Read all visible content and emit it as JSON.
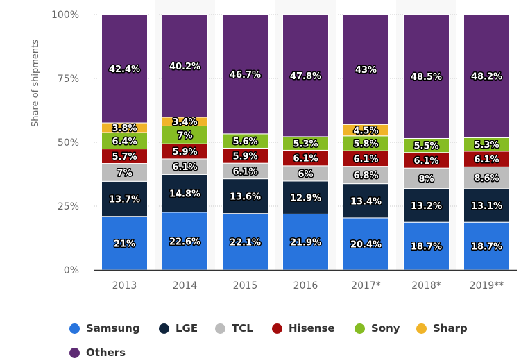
{
  "chart_data": {
    "type": "bar",
    "stacked": true,
    "title": "",
    "xlabel": "",
    "ylabel": "Share of shipments",
    "ylim": [
      0,
      100
    ],
    "yticks": [
      "0%",
      "25%",
      "50%",
      "75%",
      "100%"
    ],
    "ytick_values": [
      0,
      25,
      50,
      75,
      100
    ],
    "grid": true,
    "legend_position": "bottom",
    "categories": [
      "2013",
      "2014",
      "2015",
      "2016",
      "2017*",
      "2018*",
      "2019**"
    ],
    "series": [
      {
        "name": "Samsung",
        "color": "#2874dd",
        "values": [
          21,
          22.6,
          22.1,
          21.9,
          20.4,
          18.7,
          18.7
        ],
        "labels": [
          "21%",
          "22.6%",
          "22.1%",
          "21.9%",
          "20.4%",
          "18.7%",
          "18.7%"
        ]
      },
      {
        "name": "LGE",
        "color": "#10253d",
        "values": [
          13.7,
          14.8,
          13.6,
          12.9,
          13.4,
          13.2,
          13.1
        ],
        "labels": [
          "13.7%",
          "14.8%",
          "13.6%",
          "12.9%",
          "13.4%",
          "13.2%",
          "13.1%"
        ]
      },
      {
        "name": "TCL",
        "color": "#bcbcbc",
        "values": [
          7,
          6.1,
          6.1,
          6,
          6.8,
          8,
          8.6
        ],
        "labels": [
          "7%",
          "6.1%",
          "6.1%",
          "6%",
          "6.8%",
          "8%",
          "8.6%"
        ]
      },
      {
        "name": "Hisense",
        "color": "#a30b0b",
        "values": [
          5.7,
          5.9,
          5.9,
          6.1,
          6.1,
          6.1,
          6.1
        ],
        "labels": [
          "5.7%",
          "5.9%",
          "5.9%",
          "6.1%",
          "6.1%",
          "6.1%",
          "6.1%"
        ]
      },
      {
        "name": "Sony",
        "color": "#86bc23",
        "values": [
          6.4,
          7,
          5.6,
          5.3,
          5.8,
          5.5,
          5.3
        ],
        "labels": [
          "6.4%",
          "7%",
          "5.6%",
          "5.3%",
          "5.8%",
          "5.5%",
          "5.3%"
        ]
      },
      {
        "name": "Sharp",
        "color": "#f0b429",
        "values": [
          3.8,
          3.4,
          null,
          null,
          4.5,
          null,
          null
        ],
        "labels": [
          "3.8%",
          "3.4%",
          null,
          null,
          "4.5%",
          null,
          null
        ]
      },
      {
        "name": "Others",
        "color": "#5e2b74",
        "values": [
          42.4,
          40.2,
          46.7,
          47.8,
          43,
          48.5,
          48.2
        ],
        "labels": [
          "42.4%",
          "40.2%",
          "46.7%",
          "47.8%",
          "43%",
          "48.5%",
          "48.2%"
        ]
      }
    ]
  },
  "colors": {
    "axis_line": "#333333",
    "grid": "#cccccc",
    "band": "#f8f8f8",
    "text": "#666666"
  }
}
